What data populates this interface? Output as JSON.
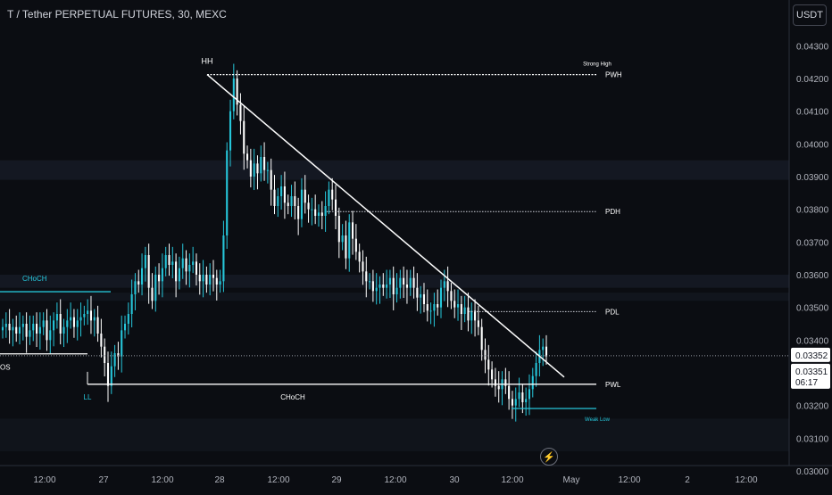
{
  "header": {
    "title": "T / Tether PERPETUAL FUTURES, 30, MEXC",
    "currency_label": "USDT"
  },
  "colors": {
    "background": "#0b0d12",
    "up": "#26c6da",
    "down": "#ffffff",
    "trendline": "#ffffff",
    "choch_line": "#26c6da",
    "axis_text": "#b2b5be",
    "price_label_bg": "#ffffff"
  },
  "icons": [
    "bolt-icon"
  ],
  "price_tag": {
    "last_price": "0.03352",
    "ref_price": "0.03351",
    "countdown": "06:17"
  },
  "annotations": {
    "hh": "HH",
    "ll": "LL",
    "choch_left": "CHoCH",
    "choch_bottom": "CHoCH",
    "strong_high": "Strong High",
    "weak_low": "Weak Low",
    "pwh": "PWH",
    "pdh": "PDH",
    "pdl": "PDL",
    "pwl": "PWL",
    "bos_partial": "OS"
  },
  "chart_data": {
    "type": "candlestick",
    "title": "T / Tether PERPETUAL FUTURES, 30, MEXC",
    "y_ticks": [
      "0.04300",
      "0.04200",
      "0.04100",
      "0.04000",
      "0.03900",
      "0.03800",
      "0.03700",
      "0.03600",
      "0.03500",
      "0.03400",
      "0.03300",
      "0.03200",
      "0.03100",
      "0.03000"
    ],
    "x_ticks": [
      "12:00",
      "27",
      "12:00",
      "28",
      "12:00",
      "29",
      "12:00",
      "30",
      "12:00",
      "May",
      "12:00",
      "2",
      "12:00"
    ],
    "ylim": [
      0.0294,
      0.0444
    ],
    "grid": false,
    "levels": {
      "strong_high": 0.04212,
      "pdh": 0.03793,
      "pdl": 0.03487,
      "pwl": 0.03265,
      "weak_low": 0.03191,
      "choch_upper": 0.03548,
      "choch_lower": 0.03265,
      "bos": 0.03358,
      "current": 0.03352
    },
    "series": [
      {
        "values": [
          0.0344,
          0.0345,
          0.0343,
          0.0344,
          0.0342,
          0.0344,
          0.0345,
          0.0341,
          0.0343,
          0.0345,
          0.0342,
          0.0344,
          0.0346,
          0.034,
          0.0343,
          0.0346,
          0.0348,
          0.0342,
          0.0344,
          0.0346,
          0.0347,
          0.0344,
          0.0346,
          0.0347,
          0.0348,
          0.0349,
          0.0346,
          0.0347,
          0.0342,
          0.0338,
          0.0333,
          0.0326,
          0.0332,
          0.0336,
          0.0335,
          0.0343,
          0.0345,
          0.0348,
          0.0354,
          0.0358,
          0.0357,
          0.0362,
          0.0366,
          0.0356,
          0.0352,
          0.036,
          0.0358,
          0.0362,
          0.0366,
          0.0363,
          0.0364,
          0.0358,
          0.0362,
          0.0365,
          0.0361,
          0.0363,
          0.0364,
          0.036,
          0.0358,
          0.036,
          0.0357,
          0.036,
          0.0359,
          0.0357,
          0.0358,
          0.0372,
          0.0398,
          0.041,
          0.042,
          0.0412,
          0.0407,
          0.0397,
          0.0395,
          0.039,
          0.0394,
          0.0391,
          0.0396,
          0.0392,
          0.0392,
          0.0386,
          0.0381,
          0.0384,
          0.0387,
          0.0382,
          0.0381,
          0.0384,
          0.0381,
          0.0377,
          0.0386,
          0.0382,
          0.038,
          0.038,
          0.0378,
          0.0379,
          0.0378,
          0.0381,
          0.0386,
          0.0383,
          0.0378,
          0.037,
          0.0372,
          0.0365,
          0.0376,
          0.0371,
          0.0367,
          0.0364,
          0.0361,
          0.0358,
          0.0358,
          0.0355,
          0.0356,
          0.0357,
          0.0356,
          0.0357,
          0.0359,
          0.0354,
          0.0356,
          0.0359,
          0.0357,
          0.0356,
          0.0359,
          0.0356,
          0.0353,
          0.0354,
          0.0351,
          0.0349,
          0.0349,
          0.0351,
          0.035,
          0.0356,
          0.0358,
          0.0355,
          0.0352,
          0.035,
          0.0351,
          0.0348,
          0.035,
          0.0346,
          0.0349,
          0.0346,
          0.0344,
          0.0337,
          0.0334,
          0.0331,
          0.0328,
          0.0326,
          0.0325,
          0.0328,
          0.0326,
          0.0322,
          0.032,
          0.0322,
          0.0324,
          0.0321,
          0.0322,
          0.0325,
          0.0329,
          0.0333,
          0.0337,
          0.0338,
          0.0335
        ]
      }
    ]
  }
}
